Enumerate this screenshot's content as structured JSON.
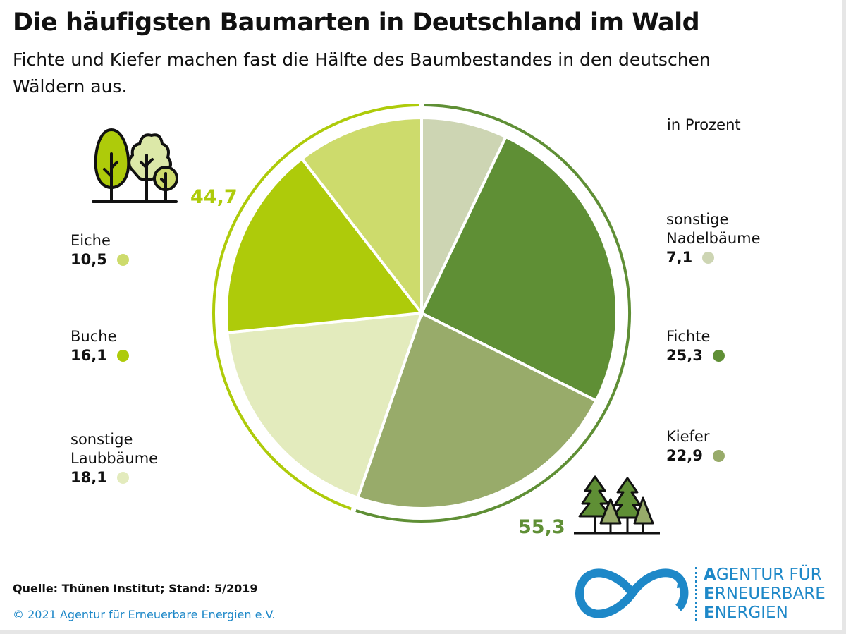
{
  "header": {
    "title": "Die häufigsten Baumarten in Deutschland im Wald",
    "subtitle": "Fichte und Kiefer machen fast die Hälfte des Baumbestandes in den deutschen Wäldern aus."
  },
  "chart_data": {
    "type": "pie",
    "unit_label": "in Prozent",
    "slices": [
      {
        "label": "sonstige Nadelbäume",
        "value": 7.1,
        "color": "#cdd5b3",
        "group": "nadel"
      },
      {
        "label": "Fichte",
        "value": 25.3,
        "color": "#5f8f35",
        "group": "nadel"
      },
      {
        "label": "Kiefer",
        "value": 22.9,
        "color": "#98ab6a",
        "group": "nadel"
      },
      {
        "label": "sonstige Laubbäume",
        "value": 18.1,
        "color": "#e3ebbd",
        "group": "laub"
      },
      {
        "label": "Buche",
        "value": 16.1,
        "color": "#aecb0a",
        "group": "laub"
      },
      {
        "label": "Eiche",
        "value": 10.5,
        "color": "#cddb6c",
        "group": "laub"
      }
    ],
    "groups": [
      {
        "name": "nadel",
        "total": "55,3",
        "color": "#5f8f35"
      },
      {
        "name": "laub",
        "total": "44,7",
        "color": "#aecb0a"
      }
    ],
    "value_labels": [
      "7,1",
      "25,3",
      "22,9",
      "18,1",
      "16,1",
      "10,5"
    ]
  },
  "labels": {
    "nadel1": "sonstige",
    "nadel2": "Nadelbäume",
    "laub1": "sonstige",
    "laub2": "Laubbäume"
  },
  "footer": {
    "source": "Quelle: Thünen Institut; Stand: 5/2019",
    "copyright": "© 2021 Agentur für Erneuerbare Energien e.V."
  },
  "logo": {
    "line1_a": "A",
    "line1": "GENTUR FÜR",
    "line2_a": "E",
    "line2": "RNEUERBARE",
    "line3_a": "E",
    "line3": "NERGIEN",
    "color": "#1e88c8"
  }
}
